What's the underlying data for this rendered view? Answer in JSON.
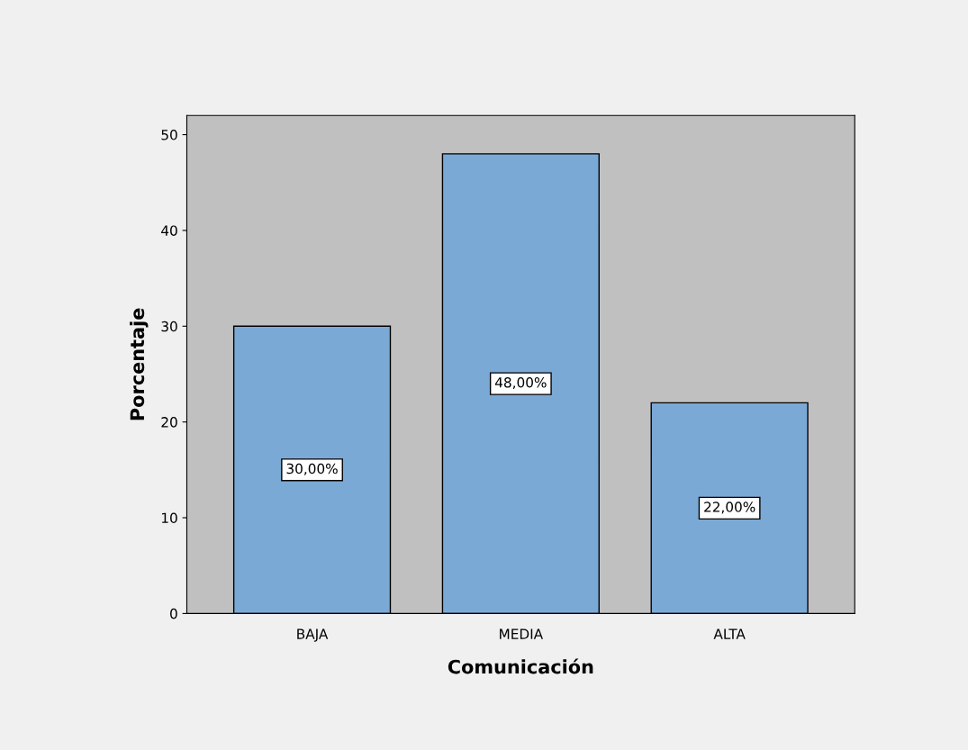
{
  "chart_data": {
    "type": "bar",
    "xlabel": "Comunicación",
    "ylabel": "Porcentaje",
    "categories": [
      "BAJA",
      "MEDIA",
      "ALTA"
    ],
    "values": [
      30,
      48,
      22
    ],
    "value_labels": [
      "30,00%",
      "48,00%",
      "22,00%"
    ],
    "color": "#7ba9d6",
    "ylim": [
      0,
      52
    ],
    "yticks": [
      0,
      10,
      20,
      30,
      40,
      50
    ],
    "grid": false,
    "legend": false
  }
}
